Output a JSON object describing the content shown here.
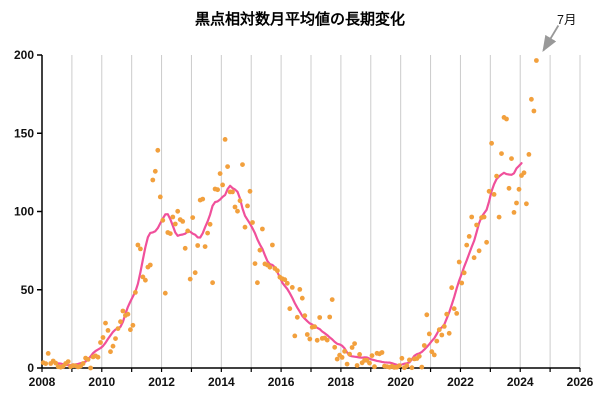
{
  "colors": {
    "scatter": "#F2A03D",
    "line": "#F0509B",
    "grid": "#CCCCCC",
    "axis": "#000000",
    "arrow": "#999999",
    "text": "#111111"
  },
  "chart_data": {
    "type": "scatter",
    "title": "黒点相対数月平均値の長期変化",
    "xlabel": "",
    "ylabel": "",
    "xlim": [
      2008,
      2026
    ],
    "ylim": [
      0,
      200
    ],
    "grid": "vertical-yearly",
    "legend": "none",
    "xtick_labels": [
      2008,
      2010,
      2012,
      2014,
      2016,
      2018,
      2020,
      2022,
      2024,
      2026
    ],
    "ytick_labels": [
      0,
      50,
      100,
      150,
      200
    ],
    "annotation": {
      "text": "7月",
      "points_to": {
        "x": 2024.54,
        "y": 196.5
      }
    },
    "series": [
      {
        "name": "monthly_mean",
        "style": "scatter",
        "start_year": 2008,
        "start_month": 1,
        "values": [
          3.4,
          2.8,
          9.3,
          2.9,
          4.5,
          3.1,
          0.8,
          0.5,
          1.1,
          2.9,
          4.1,
          0.8,
          1.5,
          1.4,
          0.7,
          1.2,
          2.9,
          6.3,
          5.5,
          0.0,
          7.1,
          7.7,
          6.9,
          16.3,
          19.5,
          28.7,
          24.0,
          10.4,
          13.9,
          18.8,
          25.2,
          29.6,
          36.4,
          33.6,
          34.4,
          24.5,
          27.3,
          48.3,
          78.6,
          76.1,
          58.2,
          56.1,
          64.5,
          65.8,
          120.1,
          125.7,
          139.1,
          109.3,
          94.4,
          47.8,
          86.6,
          85.9,
          96.5,
          92.0,
          100.1,
          94.8,
          93.7,
          76.5,
          87.6,
          56.8,
          96.1,
          60.9,
          78.3,
          107.3,
          107.9,
          77.6,
          86.2,
          91.8,
          54.5,
          114.4,
          113.9,
          124.2,
          117.0,
          146.1,
          128.7,
          112.5,
          112.5,
          102.9,
          100.2,
          106.9,
          130.0,
          90.0,
          103.6,
          112.9,
          93.0,
          66.7,
          54.5,
          75.3,
          88.8,
          66.5,
          65.8,
          64.4,
          78.6,
          63.6,
          62.2,
          58.0,
          57.0,
          56.4,
          54.1,
          37.9,
          51.5,
          20.5,
          32.4,
          50.2,
          44.6,
          33.4,
          21.4,
          18.5,
          26.1,
          26.4,
          17.7,
          32.3,
          18.9,
          19.2,
          17.8,
          32.6,
          43.7,
          13.2,
          5.7,
          8.2,
          6.8,
          10.7,
          2.5,
          8.9,
          13.1,
          15.6,
          1.6,
          8.7,
          3.3,
          4.9,
          4.9,
          3.1,
          7.9,
          0.8,
          9.4,
          9.1,
          9.9,
          1.2,
          0.9,
          0.5,
          1.1,
          0.4,
          0.5,
          1.5,
          6.2,
          0.2,
          1.5,
          5.2,
          0.2,
          5.8,
          6.1,
          7.5,
          0.6,
          14.4,
          34.0,
          21.8,
          10.4,
          8.4,
          17.2,
          24.5,
          21.1,
          26.6,
          34.4,
          22.2,
          51.3,
          37.9,
          34.9,
          67.7,
          54.3,
          60.8,
          78.5,
          84.1,
          96.5,
          70.5,
          91.4,
          74.9,
          96.1,
          96.5,
          80.3,
          112.9,
          143.6,
          110.9,
          122.6,
          96.4,
          137.0,
          160.1,
          159.1,
          114.8,
          133.8,
          99.4,
          105.4,
          114.2,
          123.0,
          124.7,
          104.9,
          136.5,
          171.7,
          164.2,
          196.5
        ]
      },
      {
        "name": "smoothed_mean",
        "style": "line",
        "derived_from": "monthly_mean",
        "smoothing_window": 13
      }
    ]
  }
}
